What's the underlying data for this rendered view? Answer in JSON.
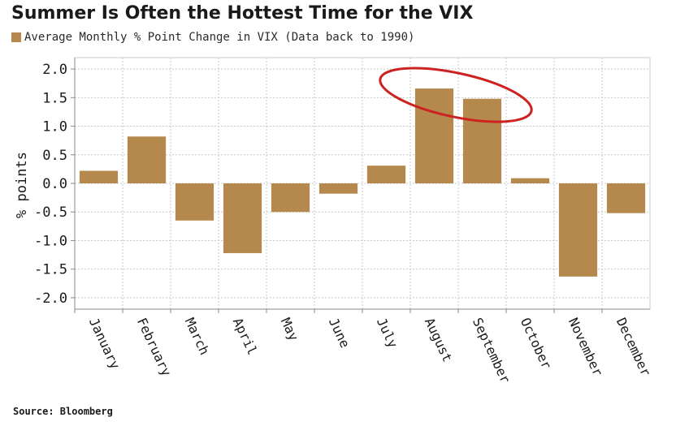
{
  "colors": {
    "bar": "#b5894d",
    "highlight_ellipse": "#cc2222",
    "grid": "#c8c8c8",
    "axis": "#8a8a8a",
    "text": "#1a1a1a"
  },
  "chart_data": {
    "type": "bar",
    "title": "Summer Is Often the Hottest Time for the VIX",
    "xlabel": "",
    "ylabel": "% points",
    "ylim": [
      -2.2,
      2.2
    ],
    "yticks": [
      2.0,
      1.5,
      1.0,
      0.5,
      0.0,
      -0.5,
      -1.0,
      -1.5,
      -2.0
    ],
    "ytick_labels": [
      "2.0",
      "1.5",
      "1.0",
      "0.5",
      "0.0",
      "-0.5",
      "-1.0",
      "-1.5",
      "-2.0"
    ],
    "grid": true,
    "legend_placement": "top-left",
    "categories": [
      "January",
      "February",
      "March",
      "April",
      "May",
      "June",
      "July",
      "August",
      "September",
      "October",
      "November",
      "December"
    ],
    "series": [
      {
        "name": "Average Monthly % Point Change in VIX (Data back to 1990)",
        "values": [
          0.22,
          0.82,
          -0.65,
          -1.22,
          -0.5,
          -0.18,
          0.31,
          1.66,
          1.48,
          0.09,
          -1.63,
          -0.52
        ]
      }
    ],
    "annotations": [
      {
        "type": "ellipse",
        "highlights": [
          "August",
          "September"
        ]
      }
    ],
    "source": "Source: Bloomberg"
  }
}
